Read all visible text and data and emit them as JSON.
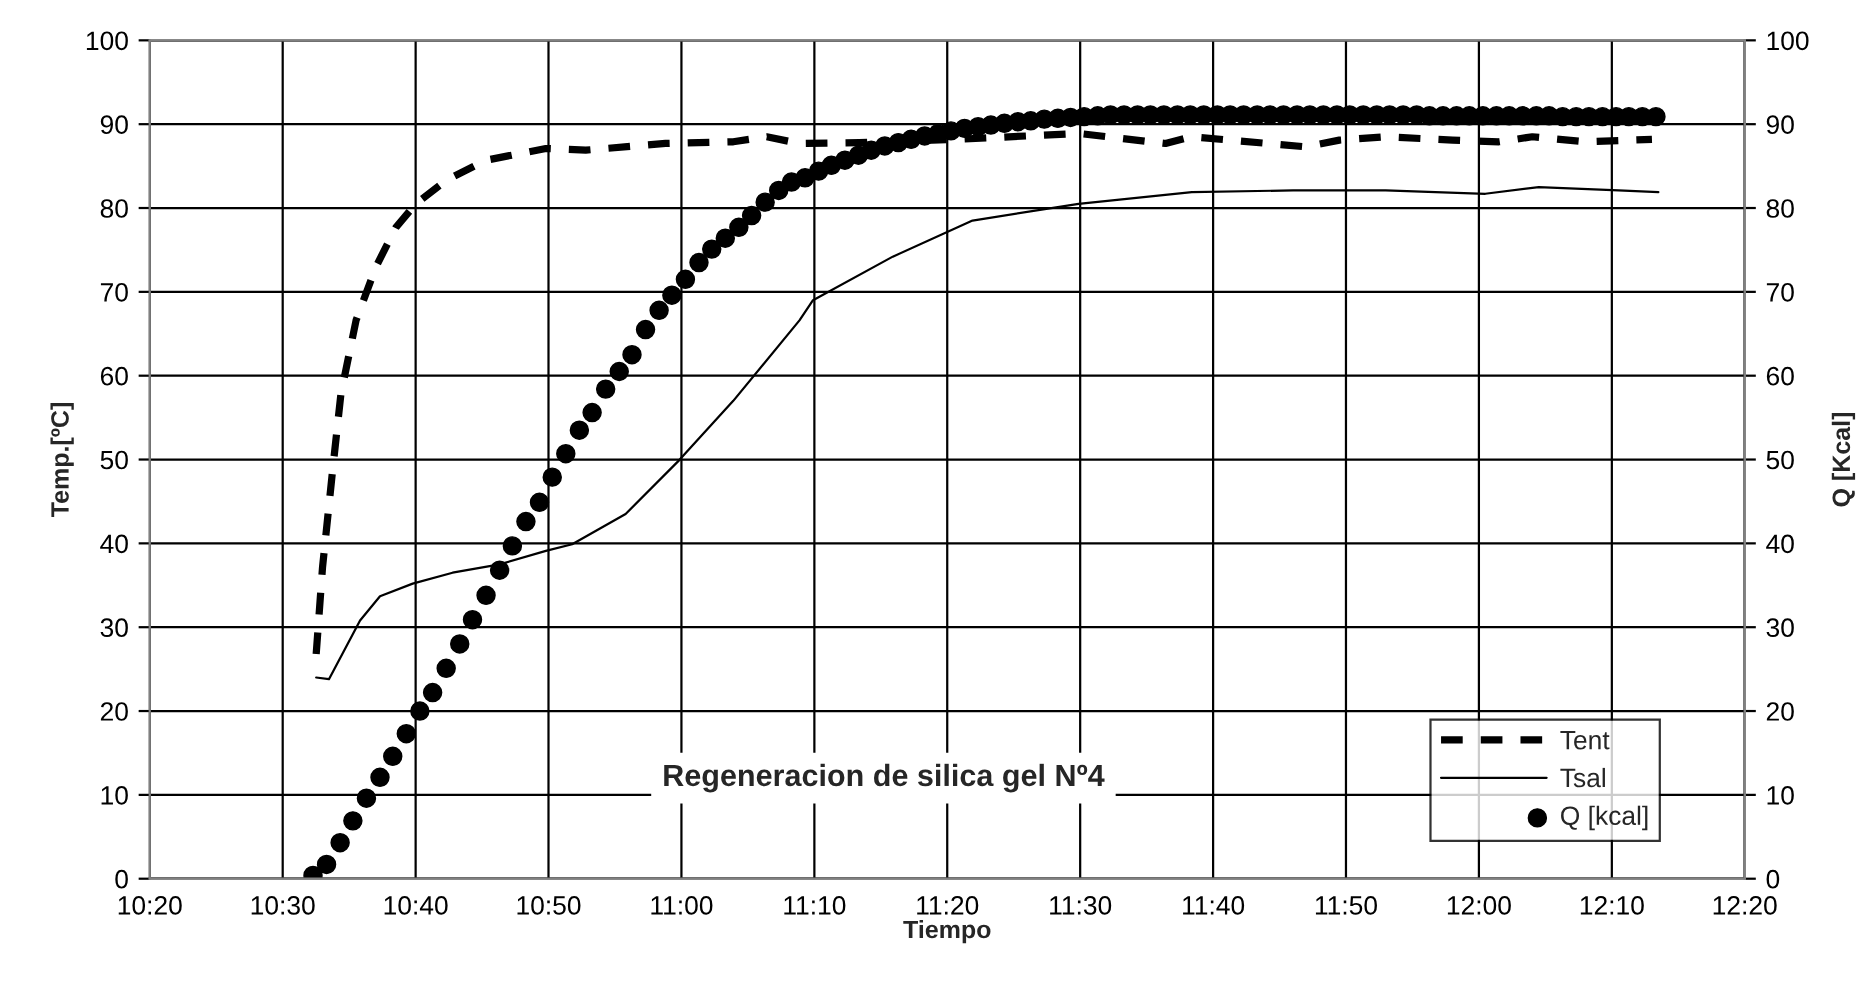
{
  "chart_data": {
    "type": "line",
    "xlabel": "Tiempo",
    "ylabel": "Temp.[ºC]",
    "y2label": "Q [Kcal]",
    "annotations": [
      "Regeneracion de silica gel Nº4"
    ],
    "xlim": [
      10.3333,
      12.3333
    ],
    "xticks": [
      {
        "value": 10.3333,
        "label": "10:20"
      },
      {
        "value": 10.5,
        "label": "10:30"
      },
      {
        "value": 10.6667,
        "label": "10:40"
      },
      {
        "value": 10.8333,
        "label": "10:50"
      },
      {
        "value": 11.0,
        "label": "11:00"
      },
      {
        "value": 11.1667,
        "label": "11:10"
      },
      {
        "value": 11.3333,
        "label": "11:20"
      },
      {
        "value": 11.5,
        "label": "11:30"
      },
      {
        "value": 11.6667,
        "label": "11:40"
      },
      {
        "value": 11.8333,
        "label": "11:50"
      },
      {
        "value": 12.0,
        "label": "12:00"
      },
      {
        "value": 12.1667,
        "label": "12:10"
      },
      {
        "value": 12.3333,
        "label": "12:20"
      }
    ],
    "ylim": [
      0,
      100
    ],
    "yticks": [
      0,
      10,
      20,
      30,
      40,
      50,
      60,
      70,
      80,
      90,
      100
    ],
    "y2lim": [
      0,
      100
    ],
    "y2ticks": [
      0,
      10,
      20,
      30,
      40,
      50,
      60,
      70,
      80,
      90,
      100
    ],
    "grid": true,
    "legend": "bottom right",
    "series": [
      {
        "name": "Tent",
        "line_style": "dashed",
        "color": "#000000",
        "x": [
          10.542,
          10.55,
          10.563,
          10.573,
          10.592,
          10.617,
          10.642,
          10.667,
          10.705,
          10.755,
          10.83,
          10.88,
          10.98,
          11.065,
          11.107,
          11.148,
          11.223,
          11.348,
          11.498,
          11.607,
          11.64,
          11.783,
          11.825,
          11.883,
          11.967,
          12.025,
          12.067,
          12.133,
          12.217
        ],
        "values": [
          26.8,
          37.2,
          49.1,
          57.8,
          66.6,
          73.0,
          77.7,
          80.5,
          83.3,
          85.7,
          87.1,
          86.9,
          87.7,
          87.9,
          88.5,
          87.7,
          87.8,
          88.2,
          88.9,
          87.7,
          88.5,
          87.3,
          88.1,
          88.5,
          88.1,
          87.9,
          88.5,
          87.9,
          88.2
        ]
      },
      {
        "name": "Tsal",
        "line_style": "solid",
        "color": "#000000",
        "x": [
          10.542,
          10.558,
          10.597,
          10.622,
          10.663,
          10.713,
          10.772,
          10.83,
          10.863,
          10.93,
          10.997,
          11.065,
          11.148,
          11.165,
          11.265,
          11.365,
          11.498,
          11.64,
          11.767,
          11.883,
          12.008,
          12.075,
          12.175,
          12.225
        ],
        "values": [
          24.0,
          23.8,
          30.8,
          33.7,
          35.2,
          36.5,
          37.5,
          39.1,
          39.9,
          43.5,
          49.9,
          57.0,
          66.6,
          69.0,
          74.2,
          78.5,
          80.5,
          81.9,
          82.1,
          82.1,
          81.7,
          82.5,
          82.1,
          81.9
        ]
      },
      {
        "name": "Q [kcal]",
        "type": "scatter",
        "axis": "y2",
        "marker": "circle",
        "color": "#000000",
        "x": [
          10.538,
          10.555,
          10.572,
          10.588,
          10.605,
          10.622,
          10.638,
          10.655,
          10.672,
          10.688,
          10.705,
          10.722,
          10.738,
          10.755,
          10.772,
          10.788,
          10.805,
          10.822,
          10.838,
          10.855,
          10.872,
          10.888,
          10.905,
          10.922,
          10.938,
          10.955,
          10.972,
          10.988,
          11.005,
          11.022,
          11.038,
          11.055,
          11.072,
          11.088,
          11.105,
          11.122,
          11.138,
          11.155,
          11.172,
          11.188,
          11.205,
          11.222,
          11.238,
          11.255,
          11.272,
          11.288,
          11.305,
          11.322,
          11.338,
          11.355,
          11.372,
          11.388,
          11.405,
          11.422,
          11.438,
          11.455,
          11.472,
          11.488,
          11.505,
          11.522,
          11.538,
          11.555,
          11.572,
          11.588,
          11.605,
          11.622,
          11.638,
          11.655,
          11.672,
          11.688,
          11.705,
          11.722,
          11.738,
          11.755,
          11.772,
          11.788,
          11.805,
          11.822,
          11.838,
          11.855,
          11.872,
          11.888,
          11.905,
          11.922,
          11.938,
          11.955,
          11.972,
          11.988,
          12.005,
          12.022,
          12.038,
          12.055,
          12.072,
          12.088,
          12.105,
          12.122,
          12.138,
          12.155,
          12.172,
          12.188,
          12.205,
          12.222
        ],
        "values": [
          0.4,
          1.7,
          4.3,
          6.9,
          9.6,
          12.1,
          14.6,
          17.3,
          20.0,
          22.2,
          25.1,
          28.0,
          30.9,
          33.8,
          36.8,
          39.7,
          42.6,
          44.9,
          47.9,
          50.7,
          53.5,
          55.6,
          58.4,
          60.5,
          62.5,
          65.5,
          67.8,
          69.6,
          71.5,
          73.5,
          75.1,
          76.4,
          77.7,
          79.1,
          80.7,
          82.1,
          83.1,
          83.6,
          84.4,
          85.1,
          85.7,
          86.3,
          86.9,
          87.4,
          87.8,
          88.2,
          88.6,
          88.9,
          89.2,
          89.5,
          89.7,
          89.9,
          90.1,
          90.3,
          90.4,
          90.6,
          90.7,
          90.8,
          90.9,
          91.0,
          91.1,
          91.1,
          91.1,
          91.1,
          91.1,
          91.1,
          91.1,
          91.1,
          91.1,
          91.1,
          91.1,
          91.1,
          91.1,
          91.1,
          91.1,
          91.1,
          91.1,
          91.1,
          91.1,
          91.1,
          91.1,
          91.1,
          91.1,
          91.1,
          91.0,
          91.0,
          91.0,
          91.0,
          91.0,
          91.0,
          91.0,
          91.0,
          91.0,
          91.0,
          90.9,
          90.9,
          90.9,
          90.9,
          90.9,
          90.9,
          90.9,
          90.9
        ]
      }
    ]
  }
}
